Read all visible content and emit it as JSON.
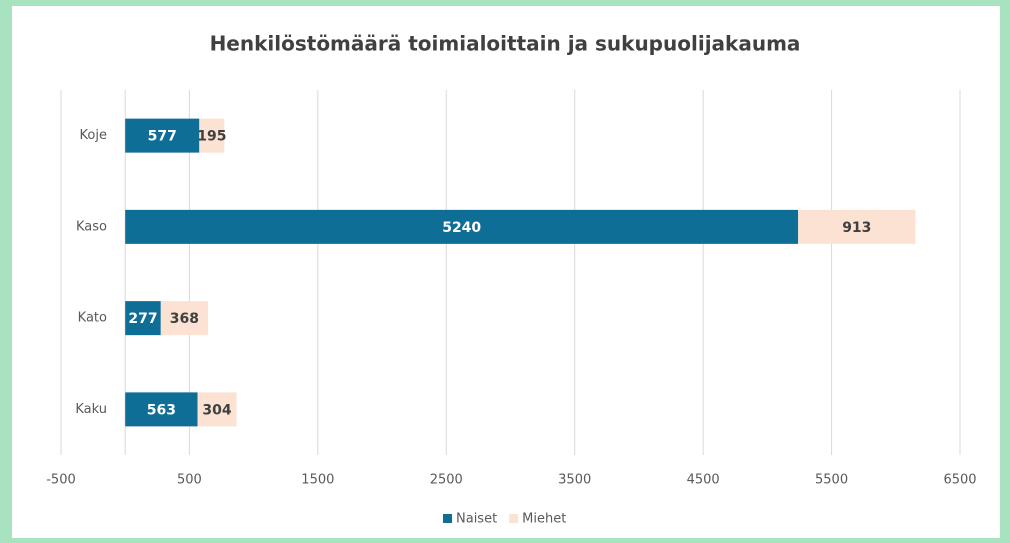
{
  "chart_data": {
    "type": "bar",
    "orientation": "horizontal",
    "stacked": true,
    "title": "Henkilöstömäärä toimialoittain ja sukupuolijakauma",
    "categories": [
      "Koje",
      "Kaso",
      "Kato",
      "Kaku"
    ],
    "series": [
      {
        "name": "Naiset",
        "color": "#0f6e96",
        "values": [
          577,
          5240,
          277,
          563
        ]
      },
      {
        "name": "Miehet",
        "color": "#fbe2d3",
        "values": [
          195,
          913,
          368,
          304
        ]
      }
    ],
    "xlim": [
      -500,
      6500
    ],
    "xticks": [
      -500,
      500,
      1500,
      2500,
      3500,
      4500,
      5500,
      6500
    ],
    "grid": true,
    "legend": "bottom"
  }
}
